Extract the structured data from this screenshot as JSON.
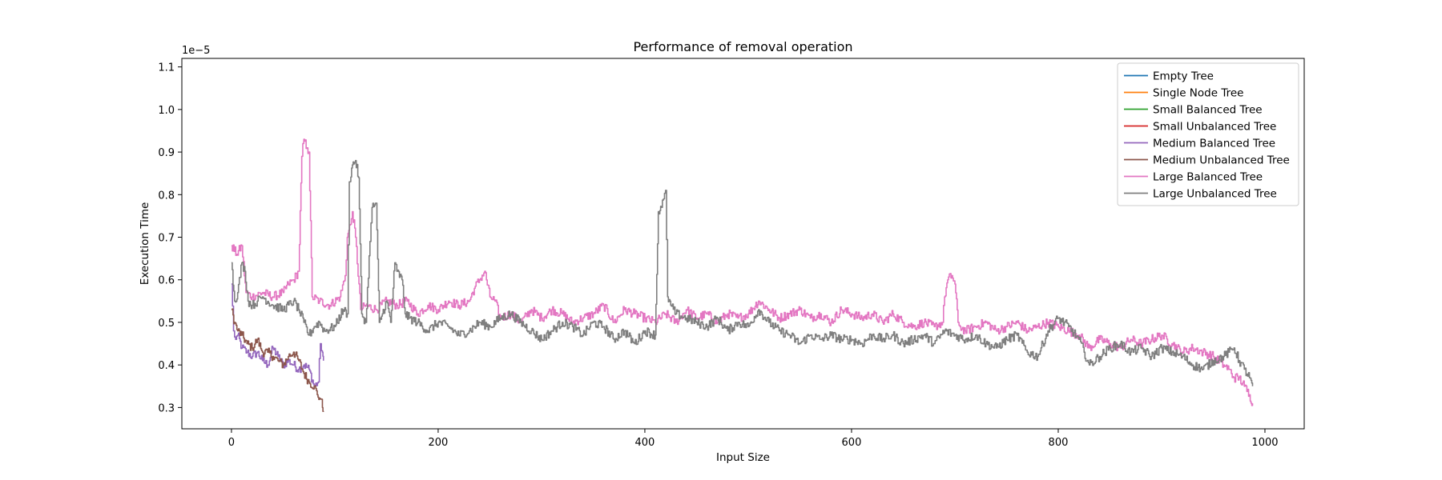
{
  "chart_data": {
    "type": "line",
    "title": "Performance of removal operation",
    "xlabel": "Input Size",
    "ylabel": "Execution Time",
    "offset_text": "1e−5",
    "xlim": [
      -48,
      1038
    ],
    "ylim": [
      0.25,
      1.12
    ],
    "xticks": [
      0,
      200,
      400,
      600,
      800,
      1000
    ],
    "yticks": [
      0.3,
      0.4,
      0.5,
      0.6,
      0.7,
      0.8,
      0.9,
      1.0,
      1.1
    ],
    "ytick_labels": [
      "0.3",
      "0.4",
      "0.5",
      "0.6",
      "0.7",
      "0.8",
      "0.9",
      "1.0",
      "1.1"
    ],
    "legend_position": "upper right",
    "grid": false,
    "series": [
      {
        "name": "Empty Tree",
        "color": "#1f77b4",
        "x": [],
        "y": []
      },
      {
        "name": "Single Node Tree",
        "color": "#ff7f0e",
        "x": [],
        "y": []
      },
      {
        "name": "Small Balanced Tree",
        "color": "#2ca02c",
        "x": [],
        "y": []
      },
      {
        "name": "Small Unbalanced Tree",
        "color": "#d62728",
        "x": [],
        "y": []
      },
      {
        "name": "Medium Balanced Tree",
        "color": "#9467bd",
        "x": [
          0,
          2,
          4,
          6,
          10,
          15,
          20,
          25,
          30,
          35,
          40,
          45,
          50,
          55,
          60,
          65,
          70,
          75,
          80,
          84,
          86,
          88,
          89
        ],
        "y": [
          0.59,
          0.48,
          0.46,
          0.47,
          0.44,
          0.43,
          0.42,
          0.43,
          0.41,
          0.4,
          0.44,
          0.42,
          0.4,
          0.41,
          0.4,
          0.39,
          0.4,
          0.39,
          0.35,
          0.36,
          0.45,
          0.43,
          0.41
        ]
      },
      {
        "name": "Medium Unbalanced Tree",
        "color": "#8c564b",
        "x": [
          0,
          3,
          6,
          10,
          15,
          20,
          25,
          30,
          35,
          40,
          45,
          50,
          55,
          60,
          65,
          70,
          75,
          80,
          83,
          86,
          88,
          89
        ],
        "y": [
          0.53,
          0.5,
          0.48,
          0.47,
          0.45,
          0.44,
          0.46,
          0.43,
          0.43,
          0.42,
          0.41,
          0.4,
          0.42,
          0.43,
          0.41,
          0.38,
          0.36,
          0.35,
          0.33,
          0.32,
          0.3,
          0.29
        ]
      },
      {
        "name": "Large Balanced Tree",
        "color": "#e377c2",
        "x": [
          0,
          5,
          10,
          14,
          20,
          30,
          40,
          50,
          55,
          60,
          65,
          68,
          70,
          73,
          75,
          78,
          85,
          95,
          105,
          110,
          112,
          115,
          117,
          120,
          125,
          130,
          140,
          150,
          160,
          170,
          180,
          190,
          200,
          210,
          220,
          230,
          235,
          240,
          245,
          250,
          255,
          260,
          270,
          280,
          290,
          300,
          310,
          320,
          330,
          340,
          350,
          360,
          370,
          380,
          390,
          400,
          410,
          420,
          430,
          440,
          450,
          460,
          470,
          480,
          490,
          500,
          510,
          520,
          530,
          540,
          550,
          560,
          570,
          580,
          590,
          600,
          610,
          620,
          630,
          640,
          650,
          660,
          670,
          680,
          688,
          690,
          693,
          697,
          700,
          703,
          705,
          710,
          720,
          730,
          740,
          750,
          760,
          770,
          780,
          790,
          800,
          810,
          820,
          830,
          840,
          850,
          860,
          870,
          880,
          890,
          900,
          910,
          920,
          930,
          940,
          950,
          960,
          965,
          970,
          975,
          980,
          985,
          988
        ],
        "y": [
          0.68,
          0.66,
          0.68,
          0.57,
          0.56,
          0.57,
          0.56,
          0.57,
          0.59,
          0.6,
          0.62,
          0.89,
          0.93,
          0.91,
          0.9,
          0.56,
          0.55,
          0.54,
          0.56,
          0.61,
          0.7,
          0.73,
          0.76,
          0.7,
          0.53,
          0.54,
          0.53,
          0.55,
          0.54,
          0.55,
          0.52,
          0.54,
          0.53,
          0.55,
          0.54,
          0.55,
          0.58,
          0.6,
          0.62,
          0.56,
          0.55,
          0.51,
          0.52,
          0.5,
          0.53,
          0.51,
          0.53,
          0.52,
          0.5,
          0.51,
          0.52,
          0.54,
          0.5,
          0.53,
          0.52,
          0.51,
          0.5,
          0.52,
          0.5,
          0.53,
          0.51,
          0.52,
          0.5,
          0.52,
          0.51,
          0.52,
          0.55,
          0.53,
          0.51,
          0.52,
          0.53,
          0.51,
          0.52,
          0.5,
          0.53,
          0.52,
          0.51,
          0.52,
          0.5,
          0.52,
          0.5,
          0.49,
          0.5,
          0.49,
          0.5,
          0.56,
          0.6,
          0.61,
          0.59,
          0.5,
          0.49,
          0.48,
          0.49,
          0.5,
          0.48,
          0.49,
          0.5,
          0.48,
          0.49,
          0.5,
          0.49,
          0.48,
          0.47,
          0.44,
          0.46,
          0.45,
          0.44,
          0.46,
          0.45,
          0.46,
          0.47,
          0.45,
          0.43,
          0.44,
          0.43,
          0.42,
          0.4,
          0.39,
          0.37,
          0.37,
          0.35,
          0.33,
          0.31
        ]
      },
      {
        "name": "Large Unbalanced Tree",
        "color": "#7f7f7f",
        "x": [
          0,
          3,
          6,
          10,
          13,
          16,
          20,
          25,
          30,
          40,
          50,
          60,
          65,
          70,
          75,
          80,
          85,
          90,
          100,
          108,
          112,
          114,
          117,
          120,
          123,
          126,
          130,
          134,
          136,
          140,
          143,
          146,
          150,
          154,
          158,
          160,
          165,
          168,
          172,
          180,
          190,
          200,
          210,
          220,
          230,
          240,
          250,
          260,
          270,
          280,
          290,
          300,
          310,
          320,
          330,
          340,
          350,
          360,
          370,
          380,
          390,
          400,
          410,
          413,
          416,
          418,
          420,
          422,
          425,
          430,
          440,
          450,
          460,
          470,
          480,
          490,
          500,
          510,
          520,
          530,
          540,
          550,
          560,
          570,
          580,
          590,
          600,
          610,
          620,
          630,
          640,
          650,
          660,
          670,
          680,
          690,
          700,
          710,
          720,
          730,
          740,
          750,
          760,
          770,
          780,
          790,
          800,
          810,
          820,
          825,
          830,
          840,
          850,
          860,
          870,
          880,
          890,
          900,
          910,
          920,
          930,
          940,
          950,
          960,
          965,
          970,
          975,
          980,
          985,
          988
        ],
        "y": [
          0.64,
          0.55,
          0.57,
          0.64,
          0.62,
          0.55,
          0.54,
          0.55,
          0.56,
          0.54,
          0.53,
          0.55,
          0.53,
          0.5,
          0.47,
          0.49,
          0.5,
          0.48,
          0.49,
          0.53,
          0.52,
          0.83,
          0.87,
          0.88,
          0.84,
          0.52,
          0.5,
          0.69,
          0.77,
          0.78,
          0.5,
          0.52,
          0.55,
          0.5,
          0.64,
          0.62,
          0.6,
          0.52,
          0.51,
          0.5,
          0.48,
          0.5,
          0.49,
          0.47,
          0.48,
          0.5,
          0.49,
          0.51,
          0.52,
          0.5,
          0.48,
          0.46,
          0.48,
          0.5,
          0.49,
          0.47,
          0.5,
          0.49,
          0.46,
          0.48,
          0.45,
          0.48,
          0.47,
          0.76,
          0.77,
          0.79,
          0.81,
          0.56,
          0.54,
          0.52,
          0.51,
          0.5,
          0.49,
          0.51,
          0.48,
          0.5,
          0.49,
          0.53,
          0.5,
          0.48,
          0.47,
          0.45,
          0.47,
          0.46,
          0.47,
          0.46,
          0.46,
          0.45,
          0.47,
          0.46,
          0.47,
          0.45,
          0.46,
          0.47,
          0.45,
          0.48,
          0.47,
          0.46,
          0.47,
          0.45,
          0.44,
          0.46,
          0.47,
          0.43,
          0.42,
          0.48,
          0.51,
          0.49,
          0.46,
          0.43,
          0.4,
          0.42,
          0.44,
          0.45,
          0.43,
          0.44,
          0.42,
          0.44,
          0.43,
          0.42,
          0.4,
          0.39,
          0.41,
          0.42,
          0.43,
          0.44,
          0.41,
          0.39,
          0.37,
          0.35
        ]
      }
    ]
  }
}
